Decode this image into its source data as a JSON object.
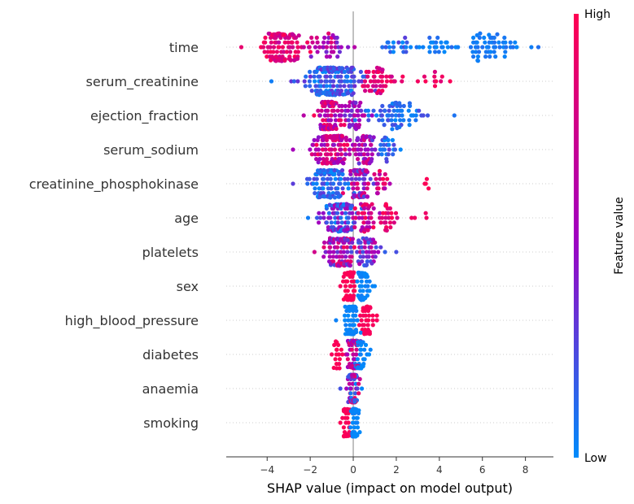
{
  "chart_data": {
    "type": "scatter",
    "subtype": "shap-beeswarm",
    "xlabel": "SHAP value (impact on model output)",
    "x_ticks": [
      -4,
      -2,
      0,
      2,
      4,
      6,
      8
    ],
    "xlim": [
      -5.9,
      9.3
    ],
    "colorbar": {
      "label": "Feature value",
      "high_label": "High",
      "low_label": "Low"
    },
    "colors": {
      "high": "#ff0052",
      "mid": "#a100c0",
      "low": "#008bfb"
    },
    "features": [
      {
        "name": "time",
        "min": -5.2,
        "max": 8.6,
        "clusters": [
          {
            "center": -3.3,
            "spread": 0.9,
            "n": 120,
            "colorLo": 0.65,
            "colorHi": 1.0
          },
          {
            "center": -1.2,
            "spread": 0.9,
            "n": 40,
            "colorLo": 0.3,
            "colorHi": 0.9
          },
          {
            "center": 2.2,
            "spread": 0.9,
            "n": 20,
            "colorLo": 0.0,
            "colorHi": 0.3
          },
          {
            "center": 6.3,
            "spread": 1.2,
            "n": 55,
            "colorLo": 0.0,
            "colorHi": 0.1
          },
          {
            "center": 4.0,
            "spread": 0.8,
            "n": 22,
            "colorLo": 0.0,
            "colorHi": 0.15
          }
        ]
      },
      {
        "name": "serum_creatinine",
        "min": -3.8,
        "max": 4.5,
        "clusters": [
          {
            "center": -1.0,
            "spread": 1.2,
            "n": 175,
            "colorLo": 0.0,
            "colorHi": 0.35
          },
          {
            "center": 1.2,
            "spread": 0.8,
            "n": 45,
            "colorLo": 0.7,
            "colorHi": 1.0
          },
          {
            "center": 3.6,
            "spread": 0.6,
            "n": 10,
            "colorLo": 0.8,
            "colorHi": 1.0
          }
        ]
      },
      {
        "name": "ejection_fraction",
        "min": -2.3,
        "max": 4.7,
        "clusters": [
          {
            "center": -1.1,
            "spread": 0.45,
            "n": 95,
            "colorLo": 0.4,
            "colorHi": 1.0
          },
          {
            "center": 0.1,
            "spread": 0.6,
            "n": 40,
            "colorLo": 0.3,
            "colorHi": 0.7
          },
          {
            "center": 1.9,
            "spread": 1.2,
            "n": 65,
            "colorLo": 0.0,
            "colorHi": 0.25
          }
        ]
      },
      {
        "name": "serum_sodium",
        "min": -2.8,
        "max": 2.2,
        "clusters": [
          {
            "center": -1.0,
            "spread": 0.7,
            "n": 115,
            "colorLo": 0.4,
            "colorHi": 1.0
          },
          {
            "center": 0.4,
            "spread": 0.5,
            "n": 50,
            "colorLo": 0.3,
            "colorHi": 0.85
          },
          {
            "center": 1.5,
            "spread": 0.5,
            "n": 25,
            "colorLo": 0.0,
            "colorHi": 0.3
          }
        ]
      },
      {
        "name": "creatinine_phosphokinase",
        "min": -2.8,
        "max": 3.5,
        "clusters": [
          {
            "center": -1.1,
            "spread": 0.8,
            "n": 100,
            "colorLo": 0.0,
            "colorHi": 0.3
          },
          {
            "center": 0.2,
            "spread": 0.5,
            "n": 70,
            "colorLo": 0.2,
            "colorHi": 0.9
          },
          {
            "center": 1.2,
            "spread": 0.5,
            "n": 20,
            "colorLo": 0.5,
            "colorHi": 1.0
          },
          {
            "center": 3.4,
            "spread": 0.15,
            "n": 3,
            "colorLo": 0.95,
            "colorHi": 1.0
          }
        ]
      },
      {
        "name": "age",
        "min": -2.1,
        "max": 3.4,
        "clusters": [
          {
            "center": -0.7,
            "spread": 0.7,
            "n": 110,
            "colorLo": 0.0,
            "colorHi": 0.6
          },
          {
            "center": 0.6,
            "spread": 0.5,
            "n": 40,
            "colorLo": 0.5,
            "colorHi": 1.0
          },
          {
            "center": 1.6,
            "spread": 0.4,
            "n": 25,
            "colorLo": 0.75,
            "colorHi": 1.0
          },
          {
            "center": 3.0,
            "spread": 0.4,
            "n": 3,
            "colorLo": 0.9,
            "colorHi": 1.0
          }
        ]
      },
      {
        "name": "platelets",
        "min": -1.8,
        "max": 2.0,
        "clusters": [
          {
            "center": -0.5,
            "spread": 0.6,
            "n": 120,
            "colorLo": 0.2,
            "colorHi": 1.0
          },
          {
            "center": 0.7,
            "spread": 0.5,
            "n": 45,
            "colorLo": 0.1,
            "colorHi": 0.7
          }
        ]
      },
      {
        "name": "sex",
        "min": -0.6,
        "max": 1.0,
        "clusters": [
          {
            "center": -0.15,
            "spread": 0.22,
            "n": 100,
            "colorLo": 0.95,
            "colorHi": 1.0
          },
          {
            "center": 0.45,
            "spread": 0.3,
            "n": 45,
            "colorLo": 0.0,
            "colorHi": 0.05
          }
        ]
      },
      {
        "name": "high_blood_pressure",
        "min": -0.8,
        "max": 1.1,
        "clusters": [
          {
            "center": -0.1,
            "spread": 0.25,
            "n": 110,
            "colorLo": 0.0,
            "colorHi": 0.05
          },
          {
            "center": 0.6,
            "spread": 0.3,
            "n": 45,
            "colorLo": 0.95,
            "colorHi": 1.0
          }
        ]
      },
      {
        "name": "diabetes",
        "min": -1.0,
        "max": 0.8,
        "clusters": [
          {
            "center": -0.7,
            "spread": 0.2,
            "n": 18,
            "colorLo": 0.95,
            "colorHi": 1.0
          },
          {
            "center": 0.0,
            "spread": 0.25,
            "n": 90,
            "colorLo": 0.4,
            "colorHi": 1.0
          },
          {
            "center": 0.3,
            "spread": 0.25,
            "n": 50,
            "colorLo": 0.0,
            "colorHi": 0.05
          }
        ]
      },
      {
        "name": "anaemia",
        "min": -0.6,
        "max": 0.4,
        "clusters": [
          {
            "center": 0.0,
            "spread": 0.2,
            "n": 130,
            "colorLo": 0.0,
            "colorHi": 1.0
          }
        ]
      },
      {
        "name": "smoking",
        "min": -0.6,
        "max": 0.3,
        "clusters": [
          {
            "center": -0.3,
            "spread": 0.18,
            "n": 40,
            "colorLo": 0.95,
            "colorHi": 1.0
          },
          {
            "center": 0.05,
            "spread": 0.12,
            "n": 85,
            "colorLo": 0.0,
            "colorHi": 0.05
          }
        ]
      }
    ]
  }
}
